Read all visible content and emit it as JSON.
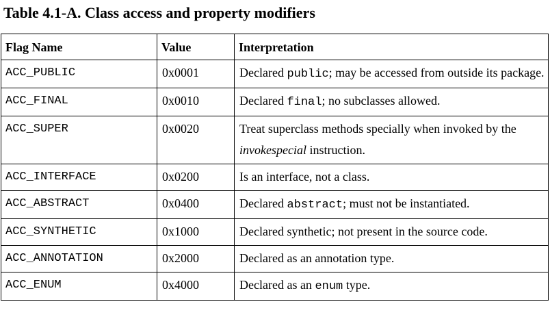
{
  "title": "Table 4.1-A. Class access and property modifiers",
  "headers": {
    "flag": "Flag Name",
    "value": "Value",
    "interp": "Interpretation"
  },
  "rows": [
    {
      "flag": "ACC_PUBLIC",
      "value": "0x0001",
      "interp": [
        {
          "t": "Declared "
        },
        {
          "t": "public",
          "s": "code"
        },
        {
          "t": "; may be accessed from outside its package."
        }
      ]
    },
    {
      "flag": "ACC_FINAL",
      "value": "0x0010",
      "interp": [
        {
          "t": "Declared "
        },
        {
          "t": "final",
          "s": "code"
        },
        {
          "t": "; no subclasses allowed."
        }
      ]
    },
    {
      "flag": "ACC_SUPER",
      "value": "0x0020",
      "interp": [
        {
          "t": "Treat superclass methods specially when invoked by the "
        },
        {
          "t": "invokespecial",
          "s": "em"
        },
        {
          "t": " instruction."
        }
      ]
    },
    {
      "flag": "ACC_INTERFACE",
      "value": "0x0200",
      "interp": [
        {
          "t": "Is an interface, not a class."
        }
      ]
    },
    {
      "flag": "ACC_ABSTRACT",
      "value": "0x0400",
      "interp": [
        {
          "t": "Declared "
        },
        {
          "t": "abstract",
          "s": "code"
        },
        {
          "t": "; must not be instantiated."
        }
      ]
    },
    {
      "flag": "ACC_SYNTHETIC",
      "value": "0x1000",
      "interp": [
        {
          "t": "Declared synthetic; not present in the source code."
        }
      ]
    },
    {
      "flag": "ACC_ANNOTATION",
      "value": "0x2000",
      "interp": [
        {
          "t": "Declared as an annotation type."
        }
      ]
    },
    {
      "flag": "ACC_ENUM",
      "value": "0x4000",
      "interp": [
        {
          "t": "Declared as an "
        },
        {
          "t": "enum",
          "s": "code"
        },
        {
          "t": " type."
        }
      ]
    }
  ]
}
